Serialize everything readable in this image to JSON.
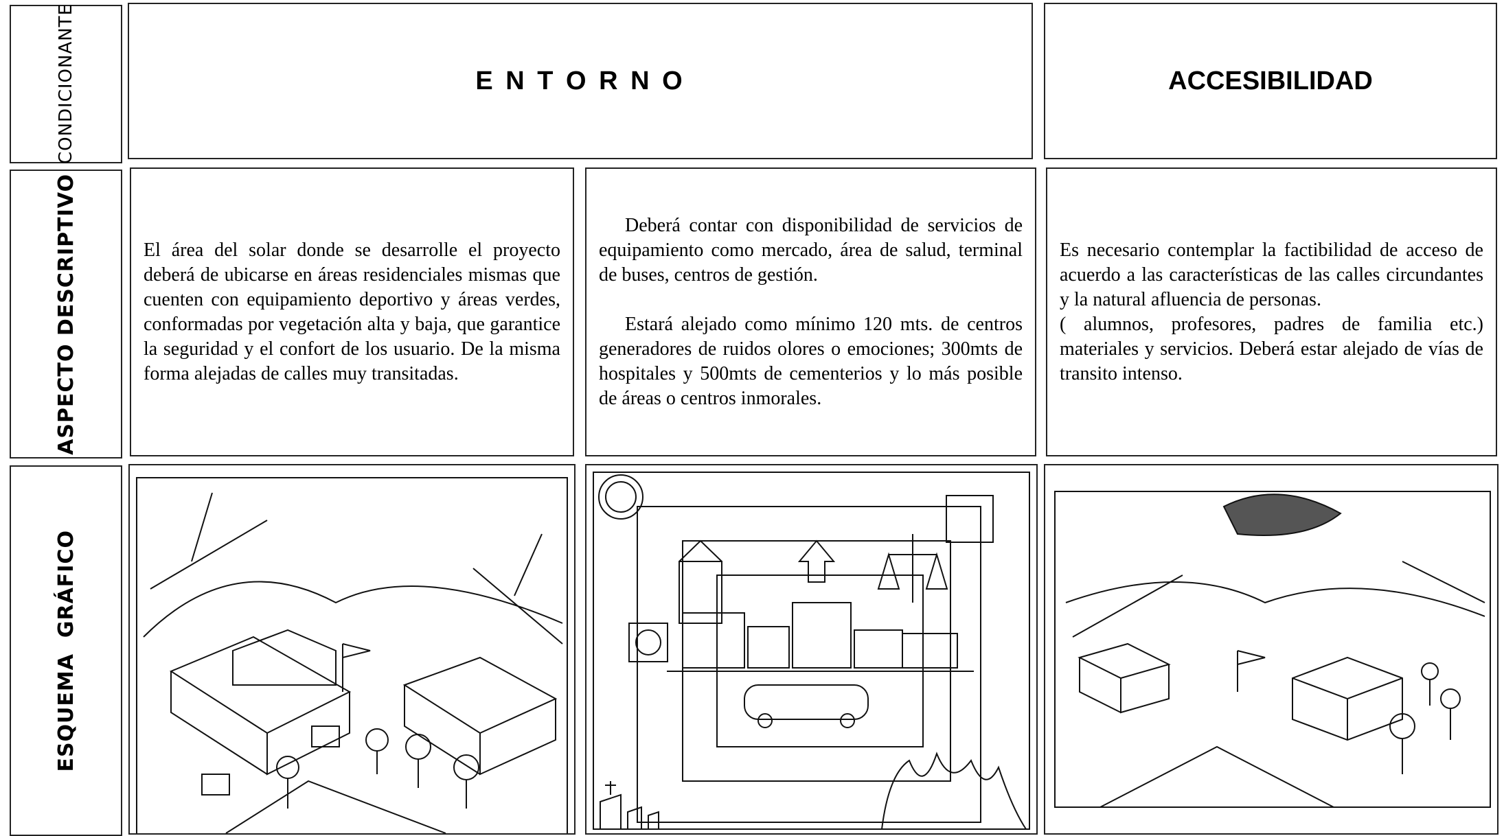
{
  "row_labels": [
    "CONDICIONANTE",
    "ASPECTO DESCRIPTIVO",
    "ESQUEMA  GRÁFICO"
  ],
  "headers": [
    "E N T O R N O",
    "ACCESIBILIDAD"
  ],
  "descriptions": [
    [
      "El área del solar donde se desarrolle el proyecto deberá de ubicarse en áreas residenciales mismas que cuenten con equipamiento deportivo y áreas verdes, conformadas por vegetación alta y baja, que garantice la seguridad y el confort de los usuario.  De la misma forma alejadas de calles muy transitadas."
    ],
    [
      "Deberá contar con disponibilidad de servicios de equipamiento como mercado, área de salud, terminal de buses, centros de gestión.",
      "Estará alejado como mínimo 120 mts. de centros generadores de ruidos olores o emociones; 300mts de hospitales y 500mts de cementerios y lo más posible de áreas o centros inmorales."
    ],
    [
      "Es necesario contemplar la factibilidad de acceso de acuerdo a las características de las calles circundantes y la natural afluencia de personas.",
      "( alumnos, profesores, padres de familia etc.) materiales y servicios.  Deberá estar alejado de vías de transito intenso."
    ]
  ]
}
